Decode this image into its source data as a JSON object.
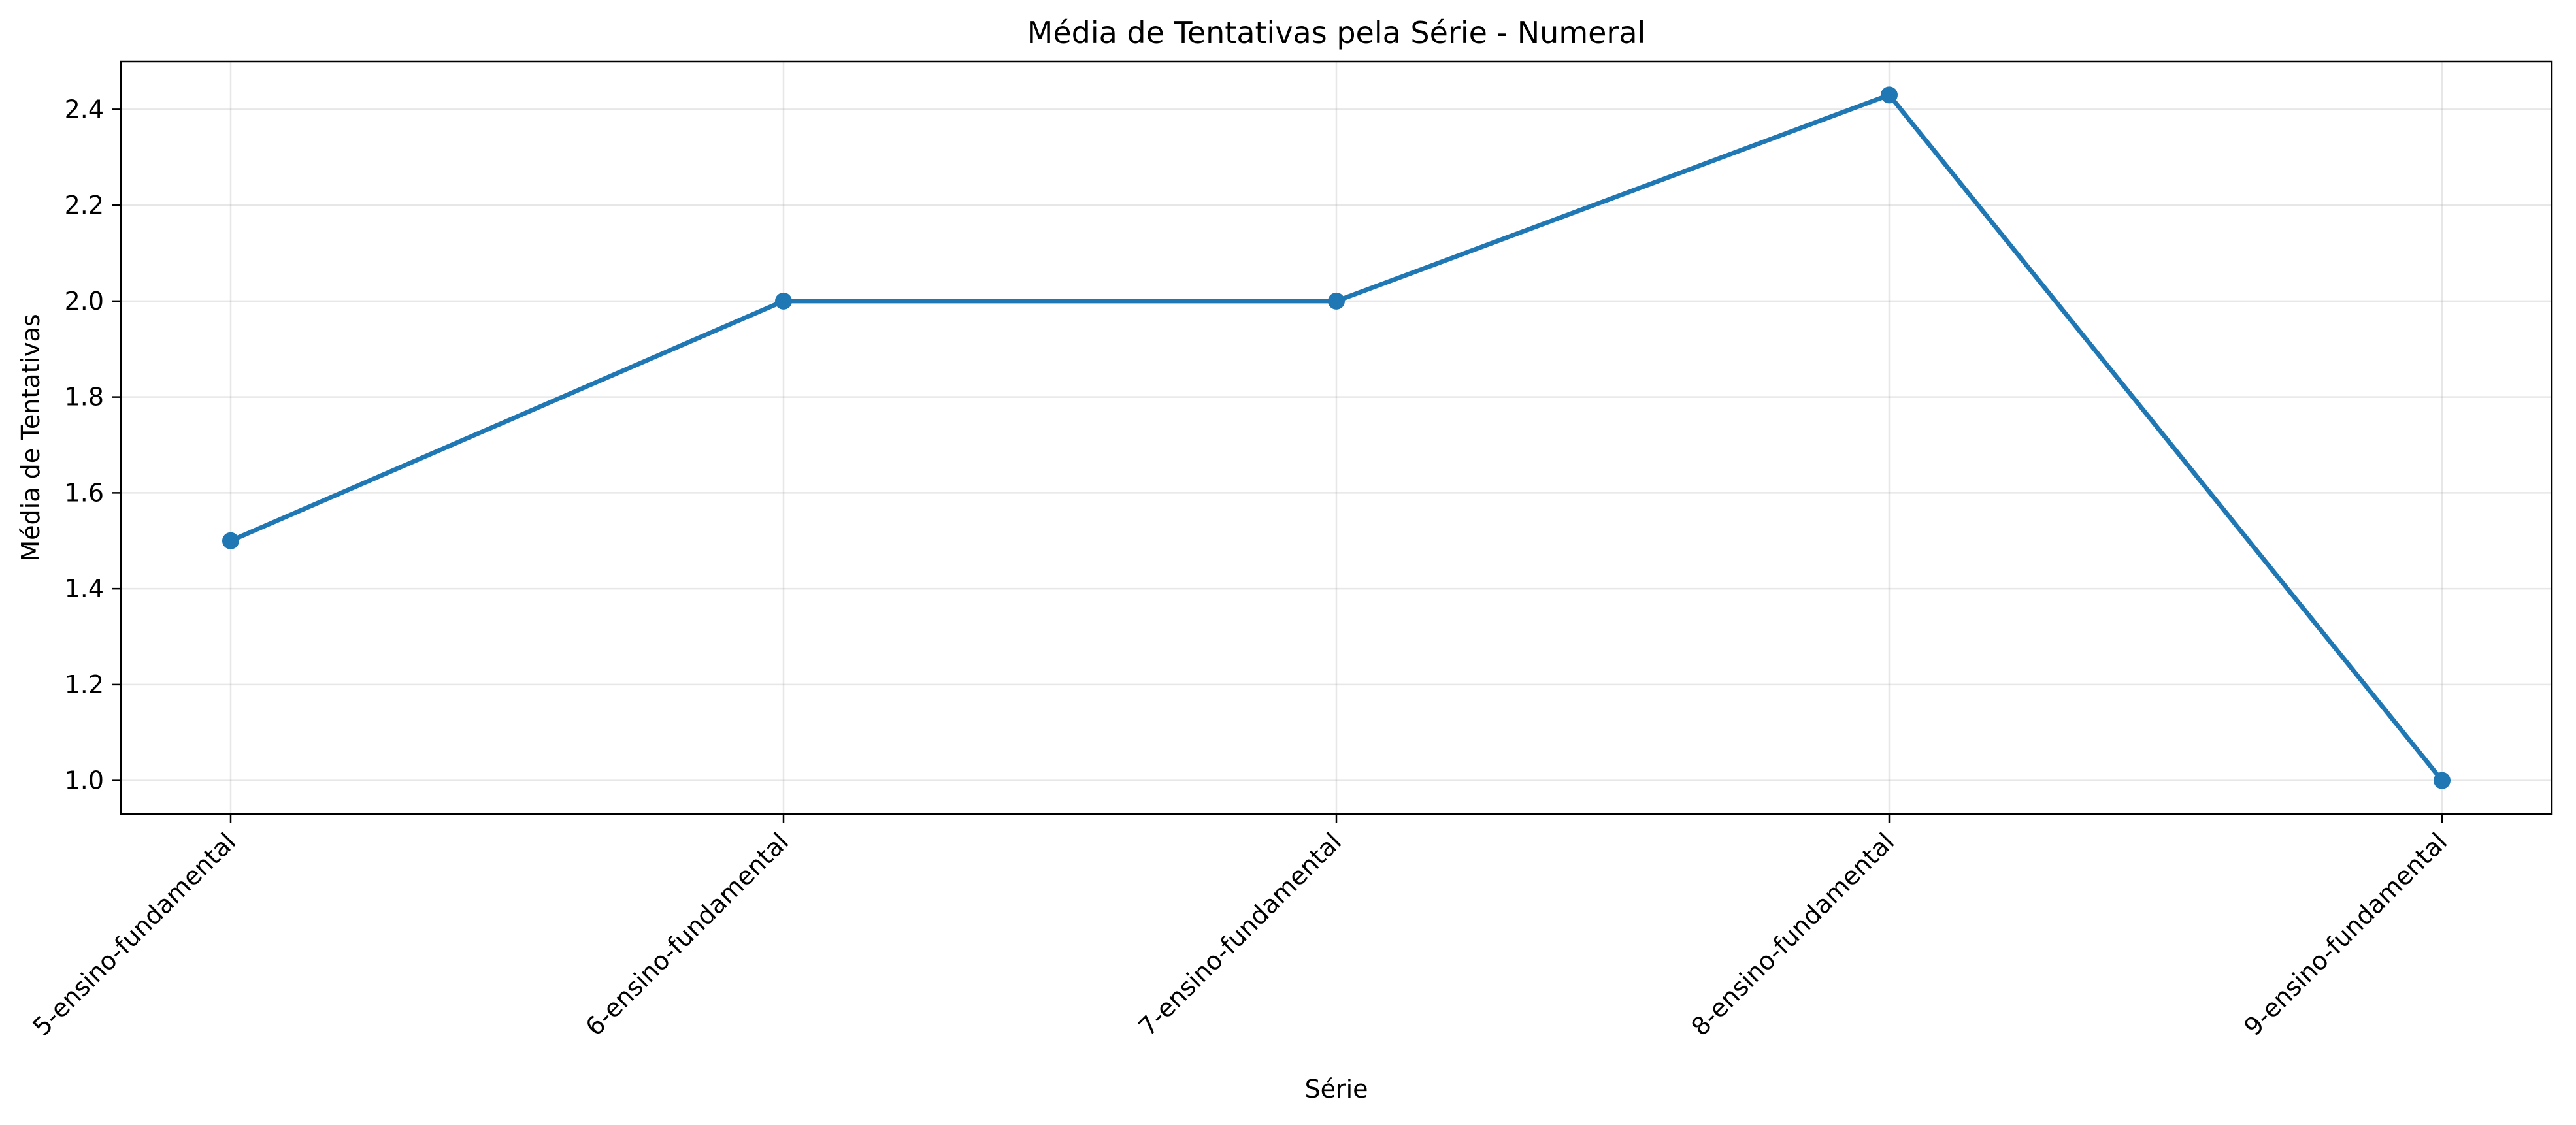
{
  "chart_data": {
    "type": "line",
    "title": "Média de Tentativas pela Série - Numeral",
    "xlabel": "Série",
    "ylabel": "Média de Tentativas",
    "categories": [
      "5-ensino-fundamental",
      "6-ensino-fundamental",
      "7-ensino-fundamental",
      "8-ensino-fundamental",
      "9-ensino-fundamental"
    ],
    "series": [
      {
        "values": [
          1.5,
          2.0,
          2.0,
          2.43,
          1.0
        ]
      }
    ],
    "ylim": [
      0.93,
      2.5
    ],
    "yticks": [
      "1.0",
      "1.2",
      "1.4",
      "1.6",
      "1.8",
      "2.0",
      "2.2",
      "2.4"
    ],
    "grid": true,
    "marker": "circle",
    "line_color": "#1f77b4"
  }
}
